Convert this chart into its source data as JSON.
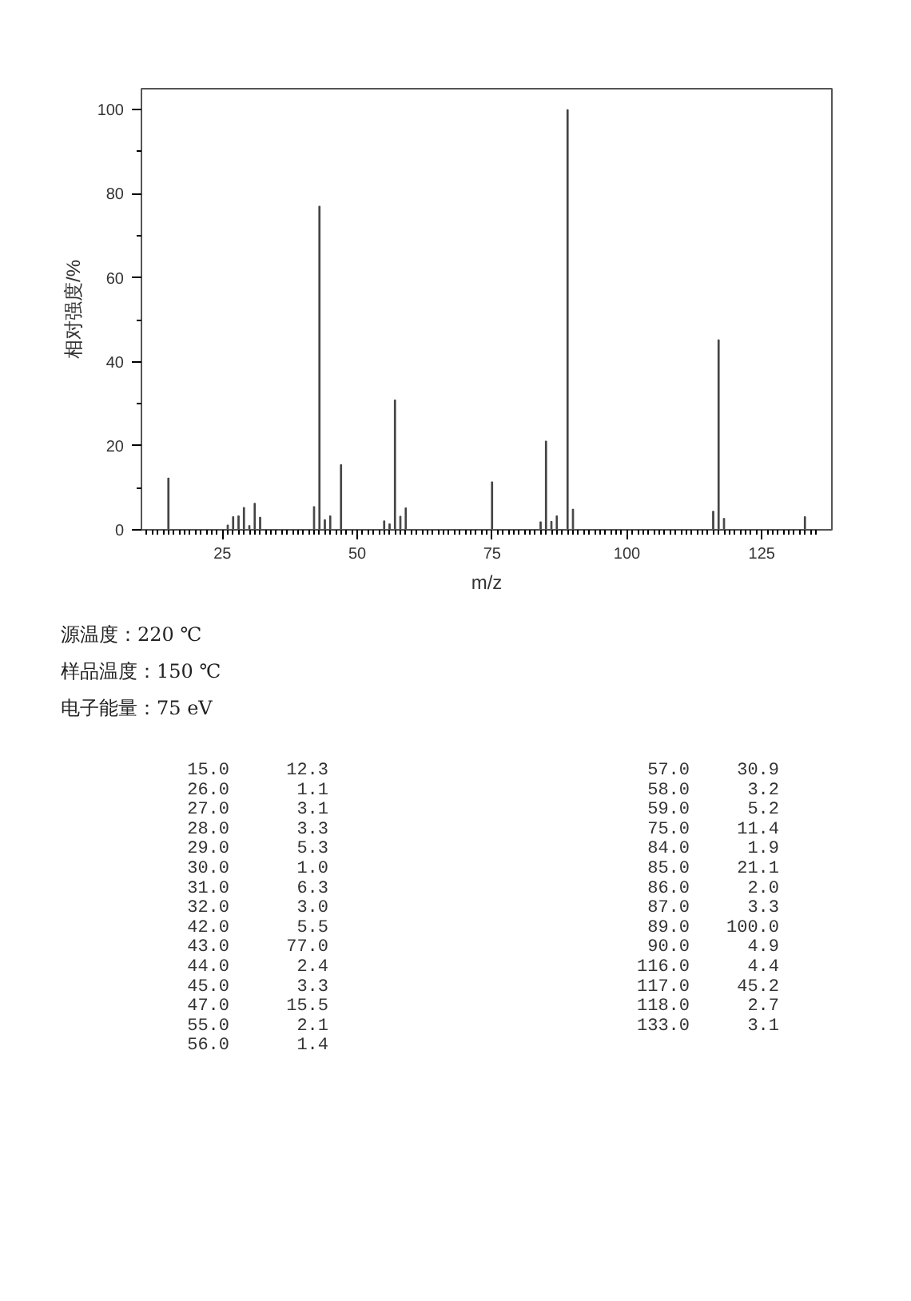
{
  "chart_data": {
    "type": "bar",
    "xlabel": "m/z",
    "ylabel": "相对强度/%",
    "x": [
      15,
      26,
      27,
      28,
      29,
      30,
      31,
      32,
      42,
      43,
      44,
      45,
      47,
      55,
      56,
      57,
      58,
      59,
      75,
      84,
      85,
      86,
      87,
      89,
      90,
      116,
      117,
      118,
      133
    ],
    "values": [
      12.3,
      1.1,
      3.1,
      3.3,
      5.3,
      1.0,
      6.3,
      3.0,
      5.5,
      77.0,
      2.4,
      3.3,
      15.5,
      2.1,
      1.4,
      30.9,
      3.2,
      5.2,
      11.4,
      1.9,
      21.1,
      2.0,
      3.3,
      100.0,
      4.9,
      4.4,
      45.2,
      2.7,
      3.1
    ],
    "color": "#444444",
    "grid": false,
    "xlim": [
      10,
      138
    ],
    "ylim": [
      0,
      105
    ],
    "xticks": [
      25,
      50,
      75,
      100,
      125,
      {
        "value": 11,
        "label": null
      },
      {
        "value": 12,
        "label": null
      },
      {
        "value": 13,
        "label": null
      },
      {
        "value": 14,
        "label": null
      },
      {
        "value": 15,
        "label": null
      },
      {
        "value": 16,
        "label": null
      },
      {
        "value": 17,
        "label": null
      },
      {
        "value": 18,
        "label": null
      },
      {
        "value": 19,
        "label": null
      },
      {
        "value": 20,
        "label": null
      },
      {
        "value": 21,
        "label": null
      },
      {
        "value": 22,
        "label": null
      },
      {
        "value": 23,
        "label": null
      },
      {
        "value": 24,
        "label": null
      },
      {
        "value": 26,
        "label": null
      },
      {
        "value": 27,
        "label": null
      },
      {
        "value": 28,
        "label": null
      },
      {
        "value": 29,
        "label": null
      },
      {
        "value": 30,
        "label": null
      },
      {
        "value": 31,
        "label": null
      },
      {
        "value": 32,
        "label": null
      },
      {
        "value": 33,
        "label": null
      },
      {
        "value": 34,
        "label": null
      },
      {
        "value": 35,
        "label": null
      },
      {
        "value": 36,
        "label": null
      },
      {
        "value": 37,
        "label": null
      },
      {
        "value": 38,
        "label": null
      },
      {
        "value": 39,
        "label": null
      },
      {
        "value": 40,
        "label": null
      },
      {
        "value": 41,
        "label": null
      },
      {
        "value": 42,
        "label": null
      },
      {
        "value": 43,
        "label": null
      },
      {
        "value": 44,
        "label": null
      },
      {
        "value": 45,
        "label": null
      },
      {
        "value": 46,
        "label": null
      },
      {
        "value": 47,
        "label": null
      },
      {
        "value": 48,
        "label": null
      },
      {
        "value": 49,
        "label": null
      },
      {
        "value": 51,
        "label": null
      },
      {
        "value": 52,
        "label": null
      },
      {
        "value": 53,
        "label": null
      },
      {
        "value": 54,
        "label": null
      },
      {
        "value": 55,
        "label": null
      },
      {
        "value": 56,
        "label": null
      },
      {
        "value": 57,
        "label": null
      },
      {
        "value": 58,
        "label": null
      },
      {
        "value": 59,
        "label": null
      },
      {
        "value": 60,
        "label": null
      },
      {
        "value": 61,
        "label": null
      },
      {
        "value": 62,
        "label": null
      },
      {
        "value": 63,
        "label": null
      },
      {
        "value": 64,
        "label": null
      },
      {
        "value": 65,
        "label": null
      },
      {
        "value": 66,
        "label": null
      },
      {
        "value": 67,
        "label": null
      },
      {
        "value": 68,
        "label": null
      },
      {
        "value": 69,
        "label": null
      },
      {
        "value": 70,
        "label": null
      },
      {
        "value": 71,
        "label": null
      },
      {
        "value": 72,
        "label": null
      },
      {
        "value": 73,
        "label": null
      },
      {
        "value": 74,
        "label": null
      },
      {
        "value": 76,
        "label": null
      },
      {
        "value": 77,
        "label": null
      },
      {
        "value": 78,
        "label": null
      },
      {
        "value": 79,
        "label": null
      },
      {
        "value": 80,
        "label": null
      },
      {
        "value": 81,
        "label": null
      },
      {
        "value": 82,
        "label": null
      },
      {
        "value": 83,
        "label": null
      },
      {
        "value": 84,
        "label": null
      },
      {
        "value": 85,
        "label": null
      },
      {
        "value": 86,
        "label": null
      },
      {
        "value": 87,
        "label": null
      },
      {
        "value": 88,
        "label": null
      },
      {
        "value": 89,
        "label": null
      },
      {
        "value": 90,
        "label": null
      },
      {
        "value": 91,
        "label": null
      },
      {
        "value": 92,
        "label": null
      },
      {
        "value": 93,
        "label": null
      },
      {
        "value": 94,
        "label": null
      },
      {
        "value": 95,
        "label": null
      },
      {
        "value": 96,
        "label": null
      },
      {
        "value": 97,
        "label": null
      },
      {
        "value": 98,
        "label": null
      },
      {
        "value": 99,
        "label": null
      },
      {
        "value": 101,
        "label": null
      },
      {
        "value": 102,
        "label": null
      },
      {
        "value": 103,
        "label": null
      },
      {
        "value": 104,
        "label": null
      },
      {
        "value": 105,
        "label": null
      },
      {
        "value": 106,
        "label": null
      },
      {
        "value": 107,
        "label": null
      },
      {
        "value": 108,
        "label": null
      },
      {
        "value": 109,
        "label": null
      },
      {
        "value": 110,
        "label": null
      },
      {
        "value": 111,
        "label": null
      },
      {
        "value": 112,
        "label": null
      },
      {
        "value": 113,
        "label": null
      },
      {
        "value": 114,
        "label": null
      },
      {
        "value": 115,
        "label": null
      },
      {
        "value": 116,
        "label": null
      },
      {
        "value": 117,
        "label": null
      },
      {
        "value": 118,
        "label": null
      },
      {
        "value": 119,
        "label": null
      },
      {
        "value": 120,
        "label": null
      },
      {
        "value": 121,
        "label": null
      },
      {
        "value": 122,
        "label": null
      },
      {
        "value": 123,
        "label": null
      },
      {
        "value": 124,
        "label": null
      },
      {
        "value": 126,
        "label": null
      },
      {
        "value": 127,
        "label": null
      },
      {
        "value": 128,
        "label": null
      },
      {
        "value": 129,
        "label": null
      },
      {
        "value": 130,
        "label": null
      },
      {
        "value": 131,
        "label": null
      },
      {
        "value": 132,
        "label": null
      },
      {
        "value": 133,
        "label": null
      },
      {
        "value": 134,
        "label": null
      },
      {
        "value": 135,
        "label": null
      }
    ],
    "yticks": [
      0,
      20,
      40,
      60,
      80,
      100,
      {
        "value": 10,
        "label": null
      },
      {
        "value": 30,
        "label": null
      },
      {
        "value": 50,
        "label": null
      },
      {
        "value": 70,
        "label": null
      },
      {
        "value": 90,
        "label": null
      }
    ],
    "annotations": [
      "源温度：220 ℃",
      "样品温度：150 ℃",
      "电子能量：75 eV",
      "15.0",
      "12.3",
      "26.0",
      "1.1",
      "27.0",
      "3.1",
      "28.0",
      "3.3",
      "29.0",
      "5.3",
      "30.0",
      "1.0",
      "31.0",
      "6.3",
      "32.0",
      "3.0",
      "42.0",
      "5.5",
      "43.0",
      "77.0",
      "44.0",
      "2.4",
      "45.0",
      "3.3",
      "47.0",
      "15.5",
      "55.0",
      "2.1",
      "56.0",
      "1.4",
      "57.0",
      "30.9",
      "58.0",
      "3.2",
      "59.0",
      "5.2",
      "75.0",
      "11.4",
      "84.0",
      "1.9",
      "85.0",
      "21.1",
      "86.0",
      "2.0",
      "87.0",
      "3.3",
      "89.0",
      "100.0",
      "90.0",
      "4.9",
      "116.0",
      "4.4",
      "117.0",
      "45.2",
      "118.0",
      "2.7",
      "133.0",
      "3.1"
    ]
  }
}
